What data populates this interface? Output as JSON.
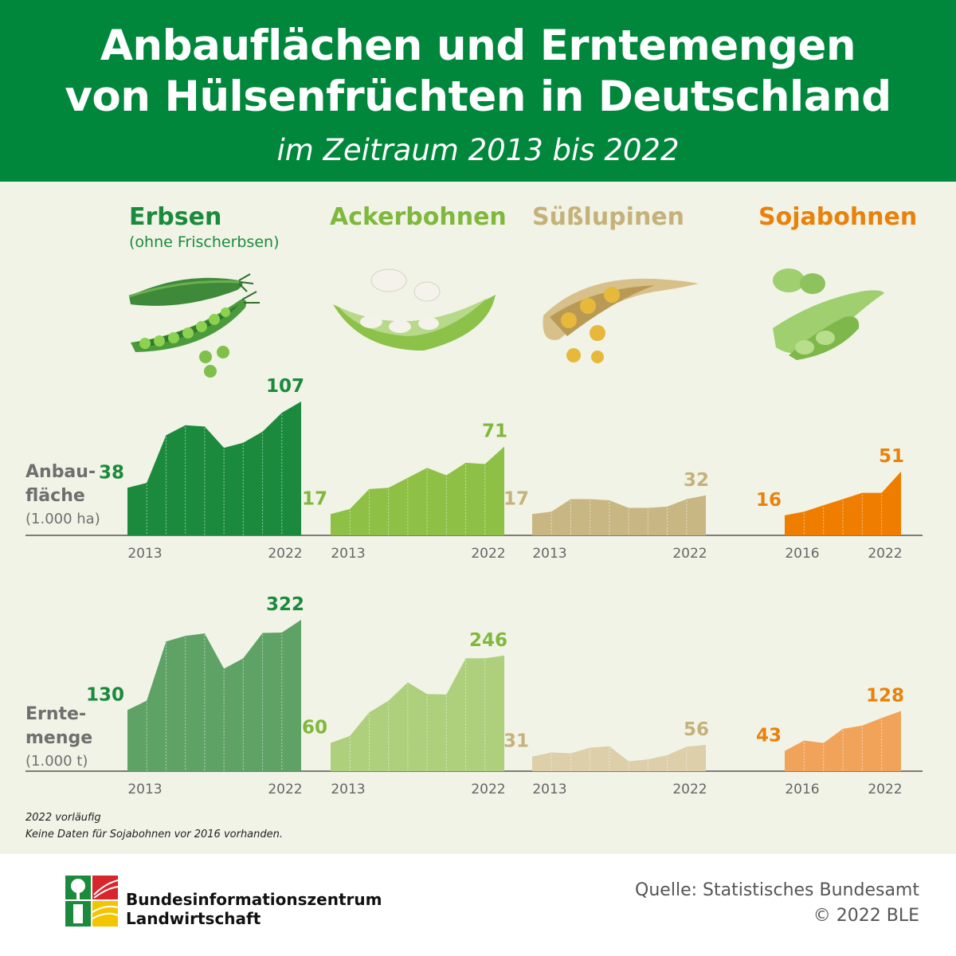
{
  "header": {
    "title_line1": "Anbauflächen und Erntemengen",
    "title_line2": "von Hülsenfrüchten in Deutschland",
    "subtitle": "im Zeitraum 2013 bis 2022"
  },
  "crops": [
    {
      "name": "Erbsen",
      "note": "(ohne Frischerbsen)",
      "color": "#1b8a3c"
    },
    {
      "name": "Ackerbohnen",
      "note": "",
      "color": "#7fb83c"
    },
    {
      "name": "Süßlupinen",
      "note": "",
      "color": "#c5b27a"
    },
    {
      "name": "Sojabohnen",
      "note": "",
      "color": "#e8820c"
    }
  ],
  "rows": {
    "area": {
      "label_line1": "Anbau-",
      "label_line2": "fläche",
      "unit": "(1.000 ha)"
    },
    "harvest": {
      "label_line1": "Ernte-",
      "label_line2": "menge",
      "unit": "(1.000 t)"
    }
  },
  "chart_data": [
    {
      "type": "area",
      "crop": "Erbsen",
      "measure": "Anbaufläche",
      "color": "#1b8a3c",
      "x": [
        2013,
        2014,
        2015,
        2016,
        2017,
        2018,
        2019,
        2020,
        2021,
        2022
      ],
      "values": [
        38,
        42,
        80,
        88,
        87,
        70,
        74,
        83,
        98,
        107
      ],
      "labels": {
        "start": "38",
        "end": "107"
      },
      "start_year": "2013",
      "end_year": "2022"
    },
    {
      "type": "area",
      "crop": "Ackerbohnen",
      "measure": "Anbaufläche",
      "color": "#8dc044",
      "x": [
        2013,
        2014,
        2015,
        2016,
        2017,
        2018,
        2019,
        2020,
        2021,
        2022
      ],
      "values": [
        17,
        21,
        37,
        38,
        46,
        54,
        48,
        58,
        57,
        71
      ],
      "labels": {
        "start": "17",
        "end": "71"
      },
      "start_year": "2013",
      "end_year": "2022"
    },
    {
      "type": "area",
      "crop": "Süßlupinen",
      "measure": "Anbaufläche",
      "color": "#c8b783",
      "x": [
        2013,
        2014,
        2015,
        2016,
        2017,
        2018,
        2019,
        2020,
        2021,
        2022
      ],
      "values": [
        17,
        19,
        29,
        29,
        28,
        22,
        22,
        23,
        29,
        32
      ],
      "labels": {
        "start": "17",
        "end": "32"
      },
      "start_year": "2013",
      "end_year": "2022"
    },
    {
      "type": "area",
      "crop": "Sojabohnen",
      "measure": "Anbaufläche",
      "color": "#ef7d00",
      "x": [
        2016,
        2017,
        2018,
        2019,
        2020,
        2021,
        2022
      ],
      "values": [
        16,
        19,
        24,
        29,
        34,
        34,
        51
      ],
      "labels": {
        "start": "16",
        "end": "51"
      },
      "start_year": "2016",
      "end_year": "2022"
    },
    {
      "type": "area",
      "crop": "Erbsen",
      "measure": "Erntemenge",
      "color": "#5ea266",
      "x": [
        2013,
        2014,
        2015,
        2016,
        2017,
        2018,
        2019,
        2020,
        2021,
        2022
      ],
      "values": [
        130,
        150,
        276,
        288,
        293,
        218,
        240,
        294,
        295,
        322
      ],
      "labels": {
        "start": "130",
        "end": "322"
      },
      "start_year": "2013",
      "end_year": "2022"
    },
    {
      "type": "area",
      "crop": "Ackerbohnen",
      "measure": "Erntemenge",
      "color": "#aecf7c",
      "x": [
        2013,
        2014,
        2015,
        2016,
        2017,
        2018,
        2019,
        2020,
        2021,
        2022
      ],
      "values": [
        60,
        75,
        125,
        150,
        189,
        164,
        163,
        240,
        240,
        246
      ],
      "labels": {
        "start": "60",
        "end": "246"
      },
      "start_year": "2013",
      "end_year": "2022"
    },
    {
      "type": "area",
      "crop": "Süßlupinen",
      "measure": "Erntemenge",
      "color": "#dccfaa",
      "x": [
        2013,
        2014,
        2015,
        2016,
        2017,
        2018,
        2019,
        2020,
        2021,
        2022
      ],
      "values": [
        31,
        40,
        38,
        50,
        53,
        21,
        25,
        34,
        52,
        56
      ],
      "labels": {
        "start": "31",
        "end": "56"
      },
      "start_year": "2013",
      "end_year": "2022"
    },
    {
      "type": "area",
      "crop": "Sojabohnen",
      "measure": "Erntemenge",
      "color": "#f2a35a",
      "x": [
        2016,
        2017,
        2018,
        2019,
        2020,
        2021,
        2022
      ],
      "values": [
        43,
        65,
        60,
        90,
        97,
        113,
        128
      ],
      "labels": {
        "start": "43",
        "end": "128"
      },
      "start_year": "2016",
      "end_year": "2022"
    }
  ],
  "footnotes": {
    "line1": "2022 vorläufig",
    "line2": "Keine Daten für Sojabohnen vor 2016 vorhanden."
  },
  "footer": {
    "org_line1": "Bundesinformationszentrum",
    "org_line2": "Landwirtschaft",
    "source_line1": "Quelle: Statistisches Bundesamt",
    "source_line2": "© 2022 BLE"
  }
}
